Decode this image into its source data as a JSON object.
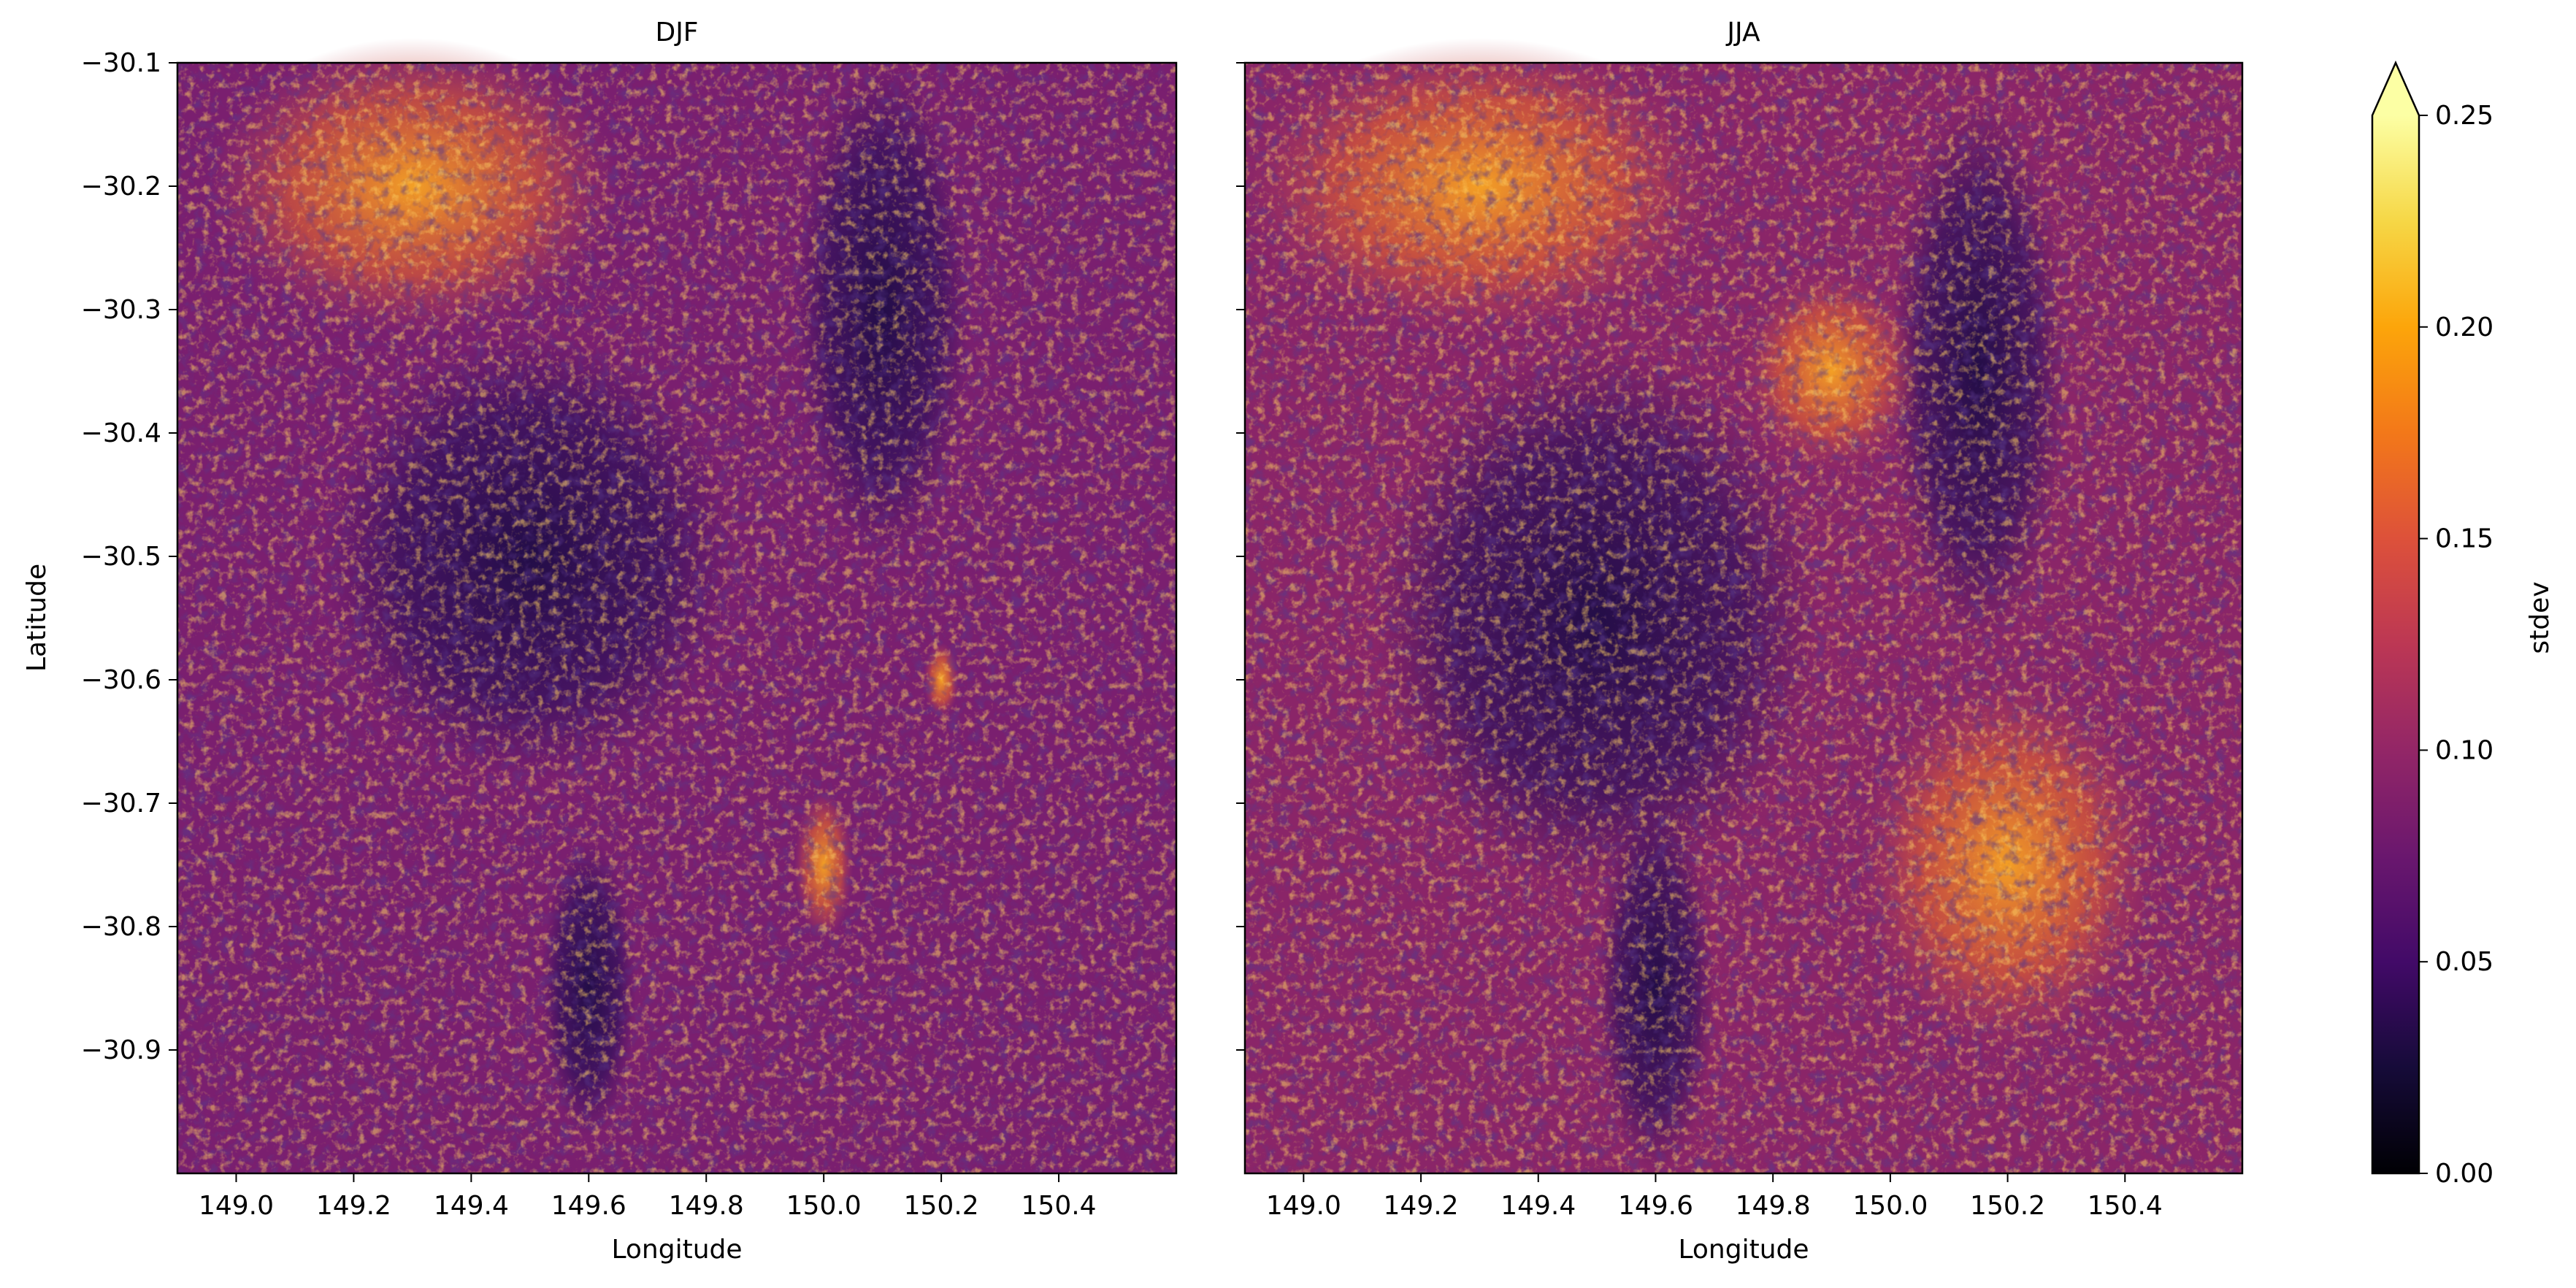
{
  "chart_data": {
    "type": "heatmap",
    "panels": [
      {
        "title": "DJF",
        "xlabel": "Longitude",
        "ylabel": "Latitude",
        "xlim": [
          148.9,
          150.6
        ],
        "ylim": [
          -31.0,
          -30.1
        ],
        "xticks": [
          "149.0",
          "149.2",
          "149.4",
          "149.6",
          "149.8",
          "150.0",
          "150.2",
          "150.4"
        ],
        "yticks": [
          "−30.1",
          "−30.2",
          "−30.3",
          "−30.4",
          "−30.5",
          "−30.6",
          "−30.7",
          "−30.8",
          "−30.9"
        ],
        "bright_features": [
          {
            "lon": 149.3,
            "lat": -30.2,
            "rx": 0.35,
            "ry": 0.12,
            "value": 0.19
          },
          {
            "lon": 150.2,
            "lat": -30.6,
            "rx": 0.03,
            "ry": 0.03,
            "value": 0.22
          },
          {
            "lon": 150.0,
            "lat": -30.75,
            "rx": 0.05,
            "ry": 0.06,
            "value": 0.18
          }
        ],
        "dark_features": [
          {
            "lon": 149.5,
            "lat": -30.5,
            "rx": 0.35,
            "ry": 0.18,
            "value": 0.05
          },
          {
            "lon": 150.1,
            "lat": -30.3,
            "rx": 0.15,
            "ry": 0.2,
            "value": 0.05
          },
          {
            "lon": 149.6,
            "lat": -30.85,
            "rx": 0.08,
            "ry": 0.12,
            "value": 0.05
          }
        ]
      },
      {
        "title": "JJA",
        "xlabel": "Longitude",
        "ylabel": "",
        "xlim": [
          148.9,
          150.6
        ],
        "ylim": [
          -31.0,
          -30.1
        ],
        "xticks": [
          "149.0",
          "149.2",
          "149.4",
          "149.6",
          "149.8",
          "150.0",
          "150.2",
          "150.4"
        ],
        "yticks": [],
        "bright_features": [
          {
            "lon": 149.3,
            "lat": -30.2,
            "rx": 0.4,
            "ry": 0.12,
            "value": 0.17
          },
          {
            "lon": 150.2,
            "lat": -30.75,
            "rx": 0.25,
            "ry": 0.15,
            "value": 0.15
          },
          {
            "lon": 149.9,
            "lat": -30.35,
            "rx": 0.15,
            "ry": 0.08,
            "value": 0.15
          }
        ],
        "dark_features": [
          {
            "lon": 149.5,
            "lat": -30.55,
            "rx": 0.38,
            "ry": 0.22,
            "value": 0.03
          },
          {
            "lon": 150.15,
            "lat": -30.35,
            "rx": 0.15,
            "ry": 0.22,
            "value": 0.03
          },
          {
            "lon": 149.6,
            "lat": -30.85,
            "rx": 0.1,
            "ry": 0.15,
            "value": 0.03
          }
        ]
      }
    ],
    "colorbar": {
      "label": "stdev",
      "colormap": "inferno",
      "range": [
        0.0,
        0.25
      ],
      "extend": "max",
      "ticks": [
        "0.00",
        "0.05",
        "0.10",
        "0.15",
        "0.20",
        "0.25"
      ]
    }
  }
}
